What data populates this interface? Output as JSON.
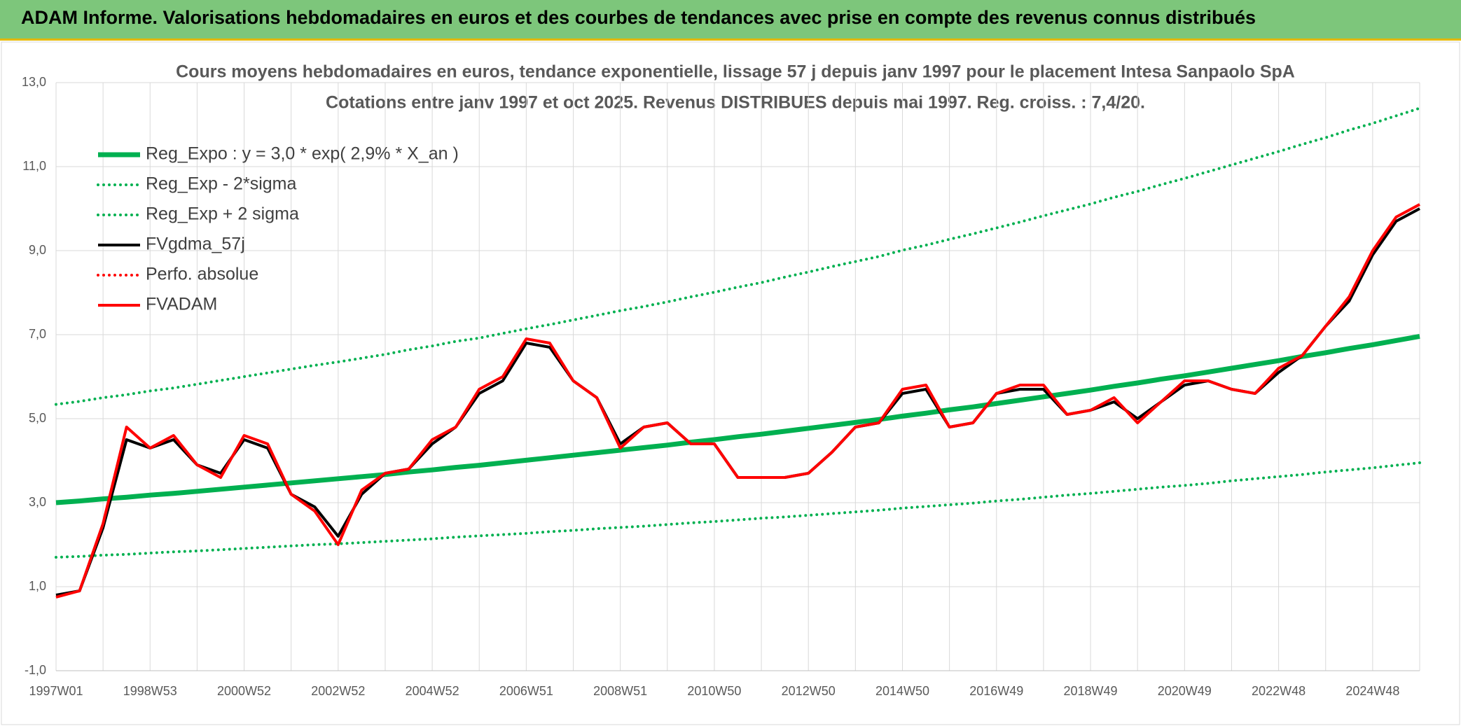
{
  "header": {
    "title": "ADAM Informe. Valorisations hebdomadaires en euros et des courbes de tendances avec prise en compte des revenus connus distribués"
  },
  "chart_data": {
    "type": "line",
    "title": "Cours moyens hebdomadaires en euros, tendance exponentielle, lissage 57 j depuis janv 1997 pour le placement Intesa Sanpaolo SpA",
    "subtitle": "Cotations entre janv 1997 et oct 2025. Revenus DISTRIBUES depuis mai 1997. Reg. croiss. : 7,4/20.",
    "categories": [
      "1997W01",
      null,
      null,
      null,
      "1998W53",
      null,
      null,
      null,
      "2000W52",
      null,
      null,
      null,
      "2002W52",
      null,
      null,
      null,
      "2004W52",
      null,
      null,
      null,
      "2006W51",
      null,
      null,
      null,
      "2008W51",
      null,
      null,
      null,
      "2010W50",
      null,
      null,
      null,
      "2012W50",
      null,
      null,
      null,
      "2014W50",
      null,
      null,
      null,
      "2016W49",
      null,
      null,
      null,
      "2018W49",
      null,
      null,
      null,
      "2020W49",
      null,
      null,
      null,
      "2022W48",
      null,
      null,
      null,
      "2024W48",
      null,
      null
    ],
    "ylim": [
      -1,
      13
    ],
    "yticks": [
      {
        "value": -1,
        "label": "-1,0"
      },
      {
        "value": 1,
        "label": "1,0"
      },
      {
        "value": 3,
        "label": "3,0"
      },
      {
        "value": 5,
        "label": "5,0"
      },
      {
        "value": 7,
        "label": "7,0"
      },
      {
        "value": 9,
        "label": "9,0"
      },
      {
        "value": 11,
        "label": "11,0"
      },
      {
        "value": 13,
        "label": "13,0"
      }
    ],
    "grid": true,
    "legend": "upper-left",
    "series": [
      {
        "name": "Reg_Expo : y = 3,0 * exp( 2,9% *  X_an )",
        "color": "#00b050",
        "style": "solid",
        "width": 7,
        "values": [
          3.0,
          3.04,
          3.09,
          3.13,
          3.18,
          3.22,
          3.27,
          3.32,
          3.37,
          3.42,
          3.47,
          3.52,
          3.57,
          3.62,
          3.67,
          3.73,
          3.78,
          3.84,
          3.89,
          3.95,
          4.01,
          4.07,
          4.13,
          4.19,
          4.25,
          4.31,
          4.37,
          4.44,
          4.5,
          4.57,
          4.63,
          4.7,
          4.77,
          4.84,
          4.91,
          4.98,
          5.06,
          5.13,
          5.21,
          5.28,
          5.36,
          5.44,
          5.52,
          5.6,
          5.68,
          5.77,
          5.85,
          5.94,
          6.02,
          6.11,
          6.2,
          6.29,
          6.38,
          6.48,
          6.57,
          6.67,
          6.76,
          6.86,
          6.96
        ]
      },
      {
        "name": "Reg_Exp - 2*sigma",
        "color": "#00b050",
        "style": "dotted",
        "width": 4,
        "values": [
          1.7,
          1.72,
          1.75,
          1.77,
          1.8,
          1.83,
          1.85,
          1.88,
          1.91,
          1.94,
          1.97,
          2.0,
          2.02,
          2.05,
          2.08,
          2.11,
          2.14,
          2.18,
          2.21,
          2.24,
          2.27,
          2.31,
          2.34,
          2.38,
          2.41,
          2.44,
          2.48,
          2.52,
          2.55,
          2.59,
          2.63,
          2.66,
          2.7,
          2.74,
          2.78,
          2.82,
          2.87,
          2.91,
          2.95,
          2.99,
          3.04,
          3.08,
          3.13,
          3.18,
          3.22,
          3.27,
          3.32,
          3.37,
          3.41,
          3.46,
          3.52,
          3.57,
          3.62,
          3.67,
          3.73,
          3.78,
          3.83,
          3.89,
          3.95
        ]
      },
      {
        "name": "Reg_Exp + 2 sigma",
        "color": "#00b050",
        "style": "dotted",
        "width": 4,
        "values": [
          5.34,
          5.41,
          5.5,
          5.57,
          5.66,
          5.73,
          5.82,
          5.91,
          6.0,
          6.09,
          6.18,
          6.27,
          6.35,
          6.44,
          6.53,
          6.64,
          6.73,
          6.84,
          6.92,
          7.03,
          7.14,
          7.24,
          7.35,
          7.46,
          7.57,
          7.67,
          7.78,
          7.9,
          8.01,
          8.13,
          8.24,
          8.37,
          8.49,
          8.62,
          8.74,
          8.86,
          9.01,
          9.13,
          9.27,
          9.4,
          9.54,
          9.68,
          9.83,
          9.97,
          10.11,
          10.27,
          10.41,
          10.57,
          10.72,
          10.88,
          11.04,
          11.2,
          11.36,
          11.53,
          11.69,
          11.87,
          12.03,
          12.21,
          12.39
        ]
      },
      {
        "name": "FVgdma_57j",
        "color": "#000000",
        "style": "solid",
        "width": 4,
        "values": [
          0.8,
          0.9,
          2.4,
          4.5,
          4.3,
          4.5,
          3.9,
          3.7,
          4.5,
          4.3,
          3.2,
          2.9,
          2.2,
          3.2,
          3.7,
          3.8,
          4.4,
          4.8,
          5.6,
          5.9,
          6.8,
          6.7,
          5.9,
          5.5,
          4.4,
          4.8,
          4.9,
          4.4,
          4.4,
          3.6,
          3.6,
          3.6,
          3.7,
          4.2,
          4.8,
          4.9,
          5.6,
          5.7,
          4.8,
          4.9,
          5.6,
          5.7,
          5.7,
          5.1,
          5.2,
          5.4,
          5.0,
          5.4,
          5.8,
          5.9,
          5.7,
          5.6,
          6.1,
          6.5,
          7.2,
          7.8,
          8.9,
          9.7,
          10.0
        ]
      },
      {
        "name": "Perfo. absolue",
        "color": "#ff0000",
        "style": "dotted",
        "width": 4,
        "values": [
          null,
          null,
          null,
          null,
          null,
          null,
          null,
          null,
          null,
          null,
          null,
          null,
          null,
          null,
          null,
          null,
          null,
          null,
          null,
          null,
          null,
          null,
          null,
          null,
          null,
          null,
          null,
          null,
          null,
          null,
          null,
          null,
          null,
          null,
          null,
          null,
          null,
          null,
          null,
          null,
          null,
          null,
          null,
          null,
          null,
          null,
          null,
          null,
          null,
          null,
          null,
          null,
          null,
          null,
          null,
          null,
          null,
          null,
          null
        ]
      },
      {
        "name": "FVADAM",
        "color": "#ff0000",
        "style": "solid",
        "width": 4,
        "values": [
          0.75,
          0.9,
          2.5,
          4.8,
          4.3,
          4.6,
          3.9,
          3.6,
          4.6,
          4.4,
          3.2,
          2.8,
          2.0,
          3.3,
          3.7,
          3.8,
          4.5,
          4.8,
          5.7,
          6.0,
          6.9,
          6.8,
          5.9,
          5.5,
          4.3,
          4.8,
          4.9,
          4.4,
          4.4,
          3.6,
          3.6,
          3.6,
          3.7,
          4.2,
          4.8,
          4.9,
          5.7,
          5.8,
          4.8,
          4.9,
          5.6,
          5.8,
          5.8,
          5.1,
          5.2,
          5.5,
          4.9,
          5.4,
          5.9,
          5.9,
          5.7,
          5.6,
          6.2,
          6.5,
          7.2,
          7.9,
          9.0,
          9.8,
          10.1
        ]
      }
    ]
  }
}
